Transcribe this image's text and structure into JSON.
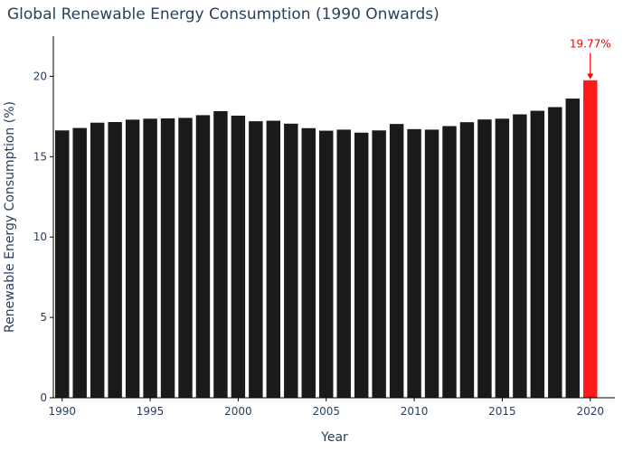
{
  "chart_data": {
    "type": "bar",
    "title": "Global Renewable Energy Consumption (1990 Onwards)",
    "xlabel": "Year",
    "ylabel": "Renewable Energy Consumption (%)",
    "x": [
      1990,
      1991,
      1992,
      1993,
      1994,
      1995,
      1996,
      1997,
      1998,
      1999,
      2000,
      2001,
      2002,
      2003,
      2004,
      2005,
      2006,
      2007,
      2008,
      2009,
      2010,
      2011,
      2012,
      2013,
      2014,
      2015,
      2016,
      2017,
      2018,
      2019,
      2020
    ],
    "values": [
      16.65,
      16.8,
      17.13,
      17.17,
      17.32,
      17.38,
      17.4,
      17.43,
      17.6,
      17.85,
      17.57,
      17.22,
      17.25,
      17.07,
      16.79,
      16.63,
      16.7,
      16.51,
      16.65,
      17.05,
      16.73,
      16.7,
      16.92,
      17.16,
      17.33,
      17.38,
      17.65,
      17.87,
      18.1,
      18.63,
      19.77
    ],
    "xticks": [
      1990,
      1995,
      2000,
      2005,
      2010,
      2015,
      2020
    ],
    "yticks": [
      0,
      5,
      10,
      15,
      20
    ],
    "ylim": [
      0,
      22.5
    ],
    "xlim": [
      1989.5,
      2021.4
    ],
    "colors": {
      "bar": "#1a1a1a",
      "highlight": "#ff1a1a",
      "text": "#2a3f5f",
      "annotation": "#ff0000"
    },
    "highlight": {
      "year": 2020,
      "label": "19.77%"
    },
    "grid": false
  }
}
